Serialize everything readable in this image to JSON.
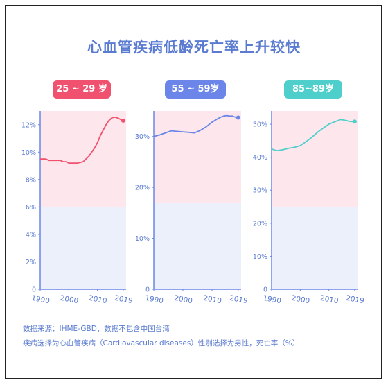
{
  "title": "心血管疾病低龄死亡率上升较快",
  "footer": {
    "line1": "数据来源：IHME-GBD，数据不包含中国台湾",
    "line2": "疾病选择为心血管疾病（Cardiovascular diseases）性别选择为男性，死亡率（%）"
  },
  "chart_data": [
    {
      "type": "line",
      "title": "25 ~ 29 岁",
      "accent": "#f0516e",
      "x_ticks": [
        "1990",
        "2000",
        "2010",
        "2019"
      ],
      "y_ticks": [
        "0",
        "2%",
        "4%",
        "6%",
        "8%",
        "10%",
        "12%"
      ],
      "xlim": [
        1990,
        2020
      ],
      "ylim": [
        0,
        13
      ],
      "highlight_above": 6,
      "x": [
        1990,
        1992,
        1993,
        1995,
        1997,
        1998,
        1999,
        2000,
        2001,
        2002,
        2003,
        2004,
        2005,
        2006,
        2007,
        2008,
        2009,
        2010,
        2011,
        2012,
        2013,
        2014,
        2015,
        2016,
        2017,
        2018,
        2019
      ],
      "values": [
        9.5,
        9.5,
        9.4,
        9.4,
        9.4,
        9.3,
        9.3,
        9.2,
        9.2,
        9.2,
        9.2,
        9.25,
        9.3,
        9.5,
        9.7,
        10.0,
        10.3,
        10.7,
        11.2,
        11.6,
        12.0,
        12.3,
        12.5,
        12.55,
        12.5,
        12.4,
        12.3
      ]
    },
    {
      "type": "line",
      "title": "55 ~ 59岁",
      "accent": "#6b86e8",
      "x_ticks": [
        "1990",
        "2000",
        "2010",
        "2019"
      ],
      "y_ticks": [
        "0",
        "10%",
        "20%",
        "30%"
      ],
      "xlim": [
        1990,
        2020
      ],
      "ylim": [
        0,
        35
      ],
      "highlight_above": 17,
      "x": [
        1990,
        1992,
        1994,
        1996,
        1998,
        2000,
        2002,
        2004,
        2006,
        2008,
        2010,
        2012,
        2013,
        2014,
        2015,
        2016,
        2017,
        2018,
        2019
      ],
      "values": [
        30.0,
        30.3,
        30.7,
        31.1,
        31.0,
        30.9,
        30.8,
        30.7,
        31.2,
        31.9,
        32.8,
        33.5,
        33.8,
        34.0,
        34.1,
        34.0,
        34.0,
        33.8,
        33.7
      ]
    },
    {
      "type": "line",
      "title": "85~89岁",
      "accent": "#4fcfcb",
      "x_ticks": [
        "1990",
        "2000",
        "2010",
        "2019"
      ],
      "y_ticks": [
        "0",
        "10%",
        "20%",
        "30%",
        "40%",
        "50%"
      ],
      "xlim": [
        1990,
        2020
      ],
      "ylim": [
        0,
        54
      ],
      "highlight_above": 25,
      "x": [
        1990,
        1991,
        1992,
        1994,
        1996,
        1998,
        2000,
        2002,
        2004,
        2006,
        2008,
        2010,
        2012,
        2014,
        2015,
        2016,
        2017,
        2018,
        2019
      ],
      "values": [
        42.5,
        42.2,
        42.0,
        42.3,
        42.7,
        43.0,
        43.5,
        44.7,
        46.0,
        47.5,
        48.8,
        50.0,
        50.7,
        51.4,
        51.3,
        51.1,
        50.9,
        50.8,
        50.8
      ]
    }
  ]
}
